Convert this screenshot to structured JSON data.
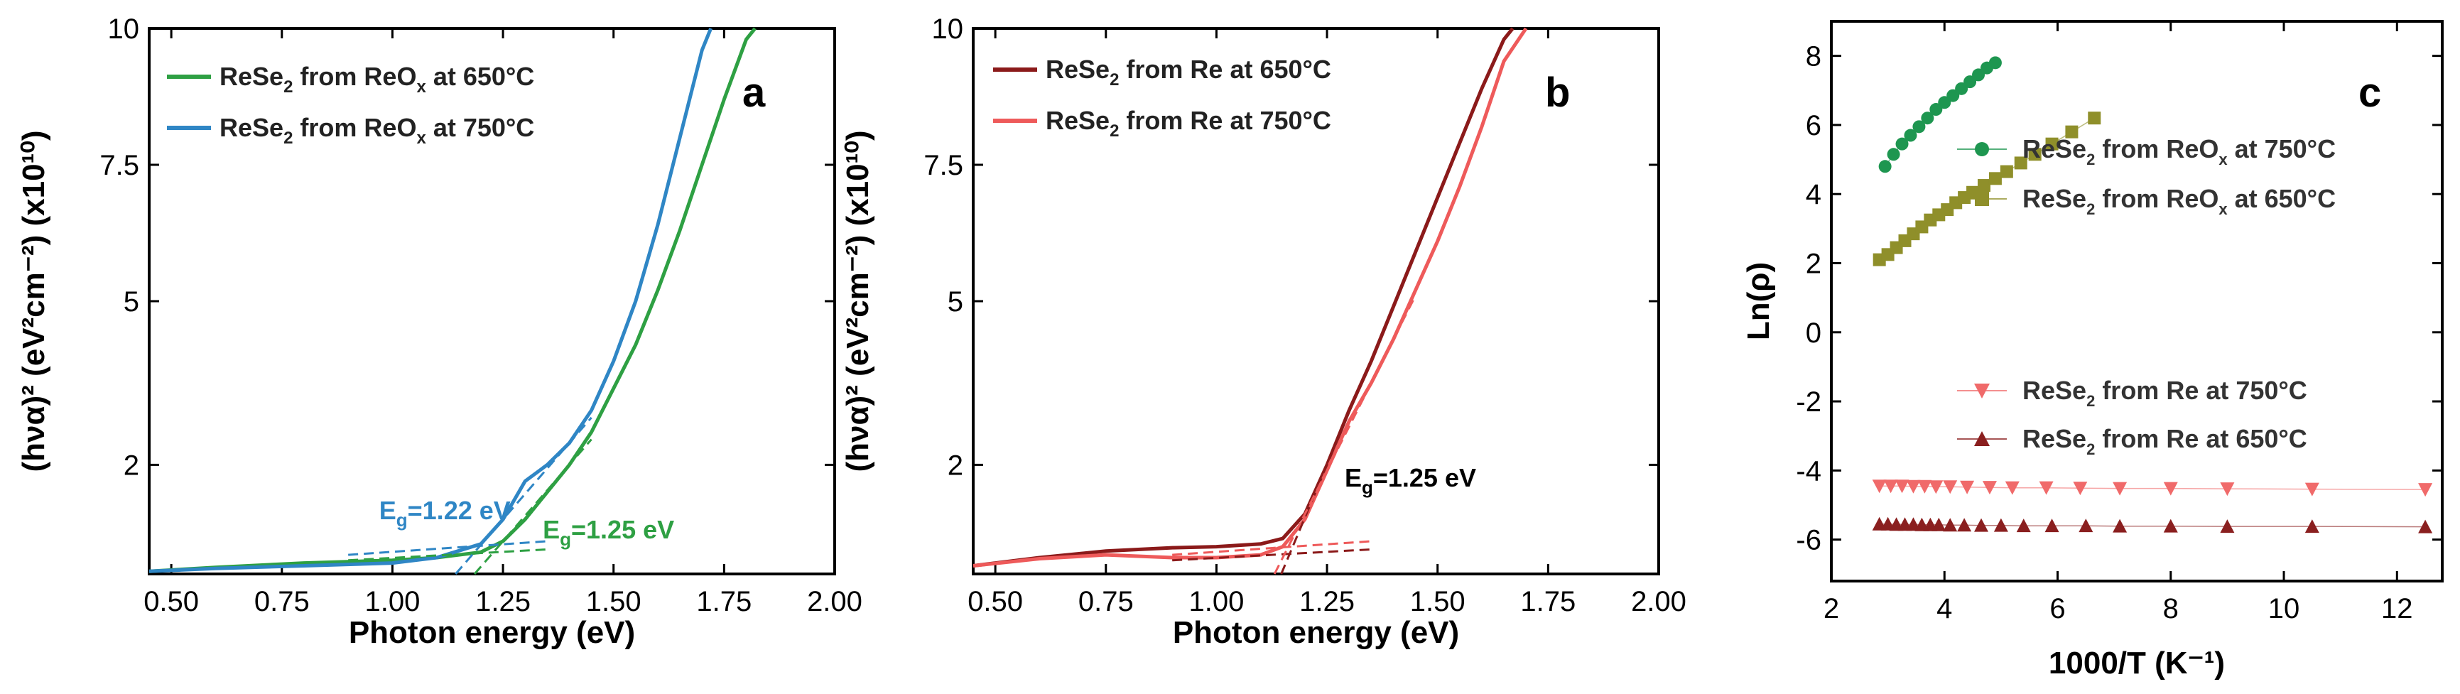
{
  "colors": {
    "green": "#2ea043",
    "blue": "#2f86c5",
    "darkred": "#8b1a1a",
    "red": "#ee5a5a",
    "darkgreen": "#1e9650",
    "olive": "#8f8f2a",
    "salmon": "#f06a6a",
    "maroon": "#8a1f1f"
  },
  "chart_data": [
    {
      "panel": "a",
      "type": "line",
      "xlabel": "Photon energy (eV)",
      "ylabel": "(hνα)² (eV²cm⁻²) (x10¹⁰)",
      "xlim": [
        0.45,
        2.0
      ],
      "ylim": [
        0,
        10
      ],
      "xticks": [
        "0.50",
        "0.75",
        "1.00",
        "1.25",
        "1.50",
        "1.75",
        "2.00"
      ],
      "yticks": [
        "2",
        "5",
        "7.5",
        "10"
      ],
      "series": [
        {
          "name": "ReSe₂ from ReOₓ at 650°C",
          "legend_main": "ReSe",
          "legend_rest": " from ReO",
          "legend_tail": " at 650°C",
          "legend_subs": [
            "2",
            "x"
          ],
          "color": "#2ea043",
          "x": [
            0.45,
            0.6,
            0.8,
            1.0,
            1.1,
            1.2,
            1.25,
            1.3,
            1.35,
            1.4,
            1.45,
            1.5,
            1.55,
            1.6,
            1.65,
            1.7,
            1.75,
            1.8,
            1.82
          ],
          "y": [
            0.05,
            0.12,
            0.2,
            0.25,
            0.3,
            0.4,
            0.6,
            1.0,
            1.5,
            2.0,
            2.6,
            3.4,
            4.2,
            5.2,
            6.3,
            7.5,
            8.7,
            9.8,
            10.0
          ]
        },
        {
          "name": "ReSe₂ from ReOₓ at 750°C",
          "legend_main": "ReSe",
          "legend_rest": " from ReO",
          "legend_tail": " at 750°C",
          "legend_subs": [
            "2",
            "x"
          ],
          "color": "#2f86c5",
          "x": [
            0.45,
            0.6,
            0.8,
            1.0,
            1.1,
            1.2,
            1.25,
            1.3,
            1.35,
            1.4,
            1.45,
            1.5,
            1.55,
            1.6,
            1.65,
            1.7,
            1.72
          ],
          "y": [
            0.05,
            0.1,
            0.15,
            0.2,
            0.3,
            0.55,
            1.0,
            1.7,
            2.0,
            2.4,
            3.0,
            3.9,
            5.0,
            6.4,
            8.0,
            9.6,
            10.0
          ]
        }
      ],
      "annotations": [
        {
          "text": "E",
          "sub": "g",
          "rest": "=1.22 eV",
          "color": "#2f86c5",
          "x": 0.97,
          "y": 1.0
        },
        {
          "text": "E",
          "sub": "g",
          "rest": "=1.25 eV",
          "color": "#2ea043",
          "x": 1.34,
          "y": 0.65
        }
      ],
      "panel_letter": "a"
    },
    {
      "panel": "b",
      "type": "line",
      "xlabel": "Photon energy (eV)",
      "ylabel": "(hνα)² (eV²cm⁻²) (x10¹⁰)",
      "xlim": [
        0.45,
        2.0
      ],
      "ylim": [
        0,
        10
      ],
      "xticks": [
        "0.50",
        "0.75",
        "1.00",
        "1.25",
        "1.50",
        "1.75",
        "2.00"
      ],
      "yticks": [
        "2",
        "5",
        "7.5",
        "10"
      ],
      "series": [
        {
          "name": "ReSe₂ from Re at 650°C",
          "legend_main": "ReSe",
          "legend_rest": " from Re at 650°C",
          "legend_tail": "",
          "legend_subs": [
            "2"
          ],
          "color": "#8b1a1a",
          "x": [
            0.45,
            0.6,
            0.75,
            0.9,
            1.0,
            1.1,
            1.15,
            1.2,
            1.25,
            1.3,
            1.35,
            1.4,
            1.45,
            1.5,
            1.55,
            1.6,
            1.65,
            1.67
          ],
          "y": [
            0.15,
            0.3,
            0.42,
            0.48,
            0.5,
            0.55,
            0.65,
            1.1,
            2.0,
            3.0,
            3.9,
            4.9,
            5.9,
            6.9,
            7.9,
            8.9,
            9.8,
            10.0
          ]
        },
        {
          "name": "ReSe₂ from Re at 750°C",
          "legend_main": "ReSe",
          "legend_rest": " from Re at 750°C",
          "legend_tail": "",
          "legend_subs": [
            "2"
          ],
          "color": "#ee5a5a",
          "x": [
            0.45,
            0.6,
            0.75,
            0.9,
            1.0,
            1.1,
            1.15,
            1.2,
            1.25,
            1.3,
            1.35,
            1.4,
            1.45,
            1.5,
            1.55,
            1.6,
            1.65,
            1.7
          ],
          "y": [
            0.15,
            0.28,
            0.35,
            0.3,
            0.3,
            0.35,
            0.5,
            1.0,
            1.9,
            2.8,
            3.5,
            4.3,
            5.2,
            6.1,
            7.1,
            8.2,
            9.4,
            10.0
          ]
        }
      ],
      "annotations": [
        {
          "text": "E",
          "sub": "g",
          "rest": "=1.25 eV",
          "color": "#000000",
          "x": 1.29,
          "y": 1.6
        }
      ],
      "panel_letter": "b"
    },
    {
      "panel": "c",
      "type": "scatter",
      "xlabel": "1000/T (K⁻¹)",
      "ylabel": "Ln(ρ)",
      "xlim": [
        2,
        12.8
      ],
      "ylim": [
        -7.2,
        9
      ],
      "xticks": [
        "2",
        "4",
        "6",
        "8",
        "10",
        "12"
      ],
      "yticks": [
        "-6",
        "-4",
        "-2",
        "0",
        "2",
        "4",
        "6",
        "8"
      ],
      "series": [
        {
          "name": "ReSe₂ from ReOₓ at 750°C",
          "legend_main": "ReSe",
          "legend_rest": " from ReO",
          "legend_tail": " at 750°C",
          "legend_subs": [
            "2",
            "x"
          ],
          "color": "#1e9650",
          "marker": "circle",
          "x": [
            2.95,
            3.1,
            3.25,
            3.4,
            3.55,
            3.7,
            3.85,
            4.0,
            4.15,
            4.3,
            4.45,
            4.6,
            4.75,
            4.9
          ],
          "y": [
            4.8,
            5.15,
            5.45,
            5.7,
            5.95,
            6.2,
            6.45,
            6.65,
            6.85,
            7.05,
            7.25,
            7.45,
            7.65,
            7.8
          ]
        },
        {
          "name": "ReSe₂ from ReOₓ at 650°C",
          "legend_main": "ReSe",
          "legend_rest": " from ReO",
          "legend_tail": " at 650°C",
          "legend_subs": [
            "2",
            "x"
          ],
          "color": "#8f8f2a",
          "marker": "square",
          "x": [
            2.85,
            3.0,
            3.15,
            3.3,
            3.45,
            3.6,
            3.75,
            3.9,
            4.05,
            4.2,
            4.35,
            4.5,
            4.7,
            4.9,
            5.1,
            5.35,
            5.6,
            5.9,
            6.25,
            6.65
          ],
          "y": [
            2.1,
            2.25,
            2.45,
            2.65,
            2.85,
            3.05,
            3.25,
            3.4,
            3.55,
            3.75,
            3.9,
            4.05,
            4.25,
            4.45,
            4.65,
            4.9,
            5.15,
            5.45,
            5.8,
            6.2
          ]
        },
        {
          "name": "ReSe₂ from Re at 750°C",
          "legend_main": "ReSe",
          "legend_rest": " from Re at 750°C",
          "legend_tail": "",
          "legend_subs": [
            "2"
          ],
          "color": "#f06a6a",
          "marker": "triangle-down",
          "x": [
            2.85,
            3.05,
            3.25,
            3.45,
            3.65,
            3.85,
            4.1,
            4.4,
            4.8,
            5.2,
            5.8,
            6.4,
            7.1,
            8.0,
            9.0,
            10.5,
            12.5
          ],
          "y": [
            -4.45,
            -4.45,
            -4.45,
            -4.46,
            -4.46,
            -4.47,
            -4.47,
            -4.48,
            -4.49,
            -4.5,
            -4.5,
            -4.51,
            -4.52,
            -4.52,
            -4.53,
            -4.54,
            -4.55
          ]
        },
        {
          "name": "ReSe₂ from Re at 650°C",
          "legend_main": "ReSe",
          "legend_rest": " from Re at 650°C",
          "legend_tail": "",
          "legend_subs": [
            "2"
          ],
          "color": "#8a1f1f",
          "marker": "triangle-up",
          "x": [
            2.85,
            3.0,
            3.15,
            3.3,
            3.45,
            3.6,
            3.75,
            3.9,
            4.1,
            4.35,
            4.65,
            5.0,
            5.4,
            5.9,
            6.5,
            7.1,
            8.0,
            9.0,
            10.5,
            12.5
          ],
          "y": [
            -5.55,
            -5.55,
            -5.56,
            -5.56,
            -5.56,
            -5.57,
            -5.57,
            -5.57,
            -5.58,
            -5.58,
            -5.59,
            -5.59,
            -5.6,
            -5.6,
            -5.6,
            -5.61,
            -5.61,
            -5.62,
            -5.62,
            -5.63
          ]
        }
      ],
      "annotations": [],
      "panel_letter": "c"
    }
  ]
}
